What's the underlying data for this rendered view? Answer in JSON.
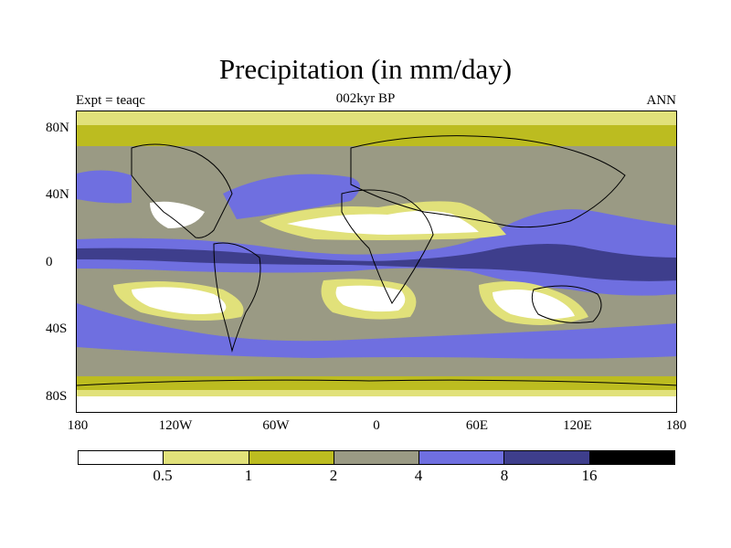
{
  "title": "Precipitation (in mm/day)",
  "left_label": "Expt = teaqc",
  "center_label": "002kyr BP",
  "right_label": "ANN",
  "y_ticks": [
    "80N",
    "40N",
    "0",
    "40S",
    "80S"
  ],
  "x_ticks": [
    "180",
    "120W",
    "60W",
    "0",
    "60E",
    "120E",
    "180"
  ],
  "colorbar": {
    "colors": [
      "#ffffff",
      "#e1e17a",
      "#bcbc20",
      "#9a9a84",
      "#6f6fe0",
      "#3e3e8c",
      "#000000"
    ],
    "labels": [
      "0.5",
      "1",
      "2",
      "4",
      "8",
      "16"
    ]
  }
}
